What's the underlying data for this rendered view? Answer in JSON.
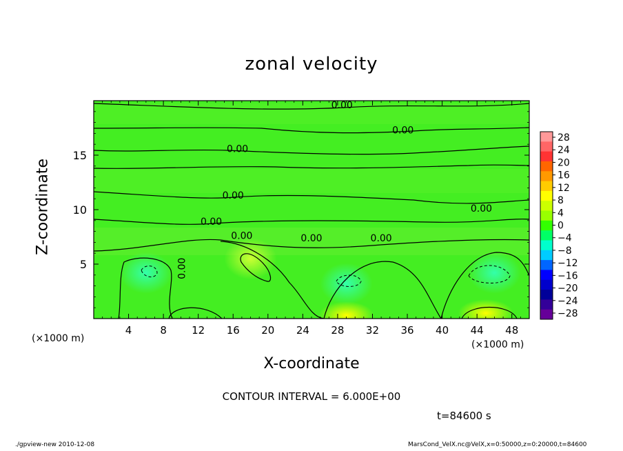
{
  "chart_data": {
    "type": "heatmap",
    "title": "zonal velocity",
    "xlabel": "X-coordinate",
    "ylabel": "Z-coordinate",
    "x_unit_label": "(×1000 m)",
    "x_unit_label_right": "(×1000 m)",
    "xlim": [
      0,
      50
    ],
    "ylim": [
      0,
      20
    ],
    "xticks": [
      4,
      8,
      12,
      16,
      20,
      24,
      28,
      32,
      36,
      40,
      44,
      48
    ],
    "yticks": [
      5,
      10,
      15
    ],
    "colorbar": {
      "labels": [
        "28",
        "24",
        "20",
        "16",
        "12",
        "8",
        "4",
        "0",
        "−4",
        "−8",
        "−12",
        "−16",
        "−20",
        "−24",
        "−28"
      ],
      "colors": [
        "#ff9999",
        "#ff6666",
        "#ff3333",
        "#ff6600",
        "#ff9900",
        "#ffcc00",
        "#ffff00",
        "#ccff00",
        "#99ff00",
        "#33ff00",
        "#00ff66",
        "#00ffcc",
        "#00ccff",
        "#0066ff",
        "#0000ff",
        "#0000cc",
        "#000099",
        "#330099",
        "#660099"
      ]
    },
    "contour_labels": [
      "0.00",
      "0.00",
      "0.00",
      "0.00",
      "0.00",
      "0.00",
      "0.00",
      "0.00",
      "0.00",
      "0.00"
    ],
    "contour_interval_text": "CONTOUR INTERVAL = 6.000E+00",
    "time_text": "t=84600 s",
    "features": [
      {
        "x": 6,
        "z": 4.2,
        "value": -6
      },
      {
        "x": 18,
        "z": 5.5,
        "value": 6
      },
      {
        "x": 29,
        "z": 3.2,
        "value": -6
      },
      {
        "x": 46,
        "z": 4.2,
        "value": -6
      },
      {
        "x": 29,
        "z": 0.3,
        "value": 8
      },
      {
        "x": 45,
        "z": 0.5,
        "value": 8
      }
    ]
  },
  "footer": {
    "left": "./gpview-new   2010-12-08",
    "right": "MarsCond_VelX.nc@VelX,x=0:50000,z=0:20000,t=84600"
  }
}
